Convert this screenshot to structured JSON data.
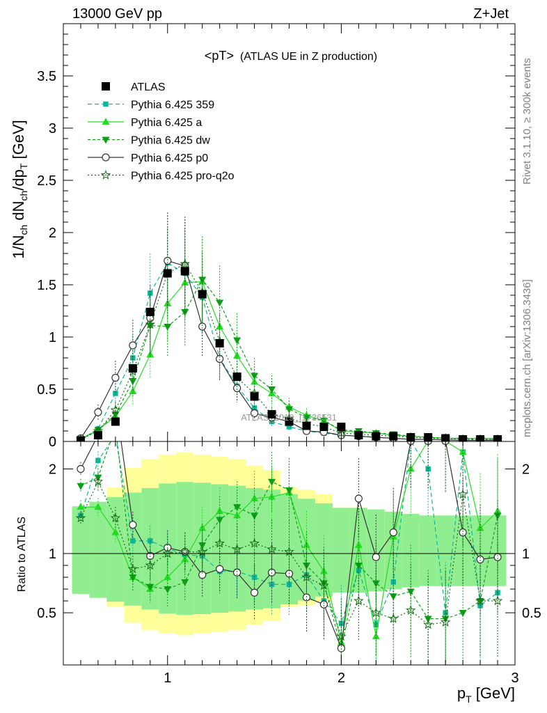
{
  "header": {
    "left": "13000 GeV pp",
    "right": "Z+Jet"
  },
  "side_labels": {
    "rivet": "Rivet 3.1.10, ≥ 300k events",
    "site": "mcplots.cern.ch [arXiv:1306.3436]"
  },
  "watermark": "ATLAS_2019_I1736531",
  "chart_data": {
    "type": "scatter",
    "title": "<pT>",
    "subtitle": "(ATLAS UE in Z production)",
    "xlabel": "p_T [GeV]",
    "ylabel": "1/N_ch dN_ch/dp_T [GeV]",
    "ratio_ylabel": "Ratio to ATLAS",
    "xlim": [
      0.4,
      3.0
    ],
    "ylim": [
      0,
      4.0
    ],
    "ratio_ylim": [
      0.34,
      2.33
    ],
    "x_ticks": [
      1,
      2,
      3
    ],
    "y_ticks": [
      0.5,
      1,
      1.5,
      2,
      2.5,
      3,
      3.5
    ],
    "ratio_ticks": [
      0.5,
      1,
      2
    ],
    "legend_position": "top-left",
    "x": [
      0.5,
      0.6,
      0.7,
      0.8,
      0.9,
      1.0,
      1.1,
      1.2,
      1.3,
      1.4,
      1.5,
      1.6,
      1.7,
      1.8,
      1.9,
      2.0,
      2.1,
      2.2,
      2.3,
      2.4,
      2.5,
      2.6,
      2.7,
      2.8,
      2.9
    ],
    "data": {
      "name": "ATLAS",
      "values": [
        0.01,
        0.06,
        0.19,
        0.7,
        1.24,
        1.61,
        1.63,
        1.41,
        0.94,
        0.62,
        0.43,
        0.26,
        0.19,
        0.15,
        0.14,
        0.14,
        0.06,
        0.05,
        0.05,
        0.04,
        0.04,
        0.03,
        0.02,
        0.02,
        0.02
      ],
      "band_inner": [
        0.62,
        0.68,
        0.74,
        0.8,
        0.86,
        0.92,
        0.94,
        0.93,
        0.91,
        0.89,
        0.86,
        0.84,
        0.78,
        0.72,
        0.66,
        0.6,
        0.6,
        0.58,
        0.55,
        0.52,
        0.5,
        0.5,
        0.5,
        0.5,
        0.5
      ],
      "band_outer": [
        0.3,
        0.4,
        0.6,
        0.78,
        0.86,
        0.9,
        0.92,
        0.9,
        0.88,
        0.86,
        0.8,
        0.76,
        0.6,
        0.58,
        0.54,
        0.42,
        0.42,
        0.4,
        0.35,
        0.35,
        0.3,
        0.3,
        0.3,
        0.3,
        0.3
      ]
    },
    "series": [
      {
        "name": "Pythia 6.425 359",
        "color": "#10b496",
        "marker": "square",
        "dash": "6,4",
        "values": [
          0.02,
          0.12,
          0.46,
          0.8,
          1.42,
          1.71,
          1.61,
          1.38,
          0.8,
          0.53,
          0.32,
          0.19,
          0.14,
          0.1,
          0.08,
          0.06,
          0.05,
          0.04,
          0.03,
          0.02,
          0.02,
          0.015,
          0.012,
          0.011,
          0.012
        ],
        "ratio": [
          1.45,
          2.1,
          2.4,
          1.15,
          1.15,
          1.06,
          0.99,
          0.98,
          0.85,
          0.85,
          0.8,
          0.74,
          0.74,
          0.82,
          0.6,
          0.41,
          0.86,
          0.4,
          0.76,
          2.33,
          2.0,
          0.5,
          2.2,
          0.56,
          0.67
        ]
      },
      {
        "name": "Pythia 6.425 a",
        "color": "#22dd22",
        "marker": "triangle-up",
        "dash": "",
        "values": [
          0.02,
          0.11,
          0.24,
          0.48,
          0.83,
          1.32,
          1.52,
          1.53,
          1.1,
          0.82,
          0.57,
          0.46,
          0.33,
          0.25,
          0.2,
          0.1,
          0.09,
          0.08,
          0.06,
          0.05,
          0.04,
          0.03,
          0.03,
          0.03,
          0.03
        ],
        "ratio": [
          1.55,
          1.55,
          1.25,
          0.8,
          0.7,
          0.8,
          0.95,
          1.3,
          1.5,
          1.45,
          1.65,
          1.67,
          1.72,
          1.1,
          0.85,
          0.25,
          1.1,
          0.3,
          1.2,
          2.0,
          2.33,
          2.33,
          2.2,
          1.3,
          1.5
        ]
      },
      {
        "name": "Pythia 6.425 dw",
        "color": "#0c9e16",
        "marker": "triangle-down",
        "dash": "4,3",
        "values": [
          0.02,
          0.11,
          0.26,
          0.58,
          1.11,
          1.1,
          1.24,
          1.55,
          1.33,
          0.97,
          0.63,
          0.5,
          0.31,
          0.23,
          0.2,
          0.11,
          0.1,
          0.08,
          0.07,
          0.05,
          0.04,
          0.03,
          0.03,
          0.02,
          0.02
        ],
        "ratio": [
          1.8,
          1.9,
          2.5,
          0.8,
          0.72,
          0.7,
          0.76,
          1.1,
          1.4,
          1.55,
          1.45,
          1.85,
          1.75,
          0.9,
          0.75,
          0.2,
          0.9,
          0.75,
          0.64,
          0.68,
          0.45,
          0.45,
          0.5,
          0.6,
          1.45
        ]
      },
      {
        "name": "Pythia 6.425 p0",
        "color": "#333333",
        "marker": "circle-open",
        "dash": "",
        "values": [
          0.03,
          0.28,
          0.61,
          0.92,
          1.18,
          1.73,
          1.68,
          1.1,
          0.79,
          0.51,
          0.27,
          0.23,
          0.19,
          0.1,
          0.09,
          0.06,
          0.05,
          0.04,
          0.03,
          0.02,
          0.02,
          0.015,
          0.01,
          0.01,
          0.01
        ],
        "ratio": [
          2.0,
          2.4,
          2.8,
          1.34,
          0.98,
          1.07,
          1.02,
          0.82,
          0.87,
          0.84,
          0.67,
          0.84,
          0.83,
          0.63,
          0.57,
          0.2,
          1.65,
          0.97,
          1.25,
          2.33,
          2.33,
          2.33,
          1.25,
          0.95,
          0.97
        ]
      },
      {
        "name": "Pythia 6.425 pro-q2o",
        "color": "#146e14",
        "marker": "star-open",
        "dash": "2,3",
        "values": [
          0.02,
          0.1,
          0.3,
          0.67,
          1.12,
          1.61,
          1.7,
          1.43,
          0.96,
          0.61,
          0.46,
          0.26,
          0.22,
          0.17,
          0.14,
          0.08,
          0.07,
          0.06,
          0.05,
          0.04,
          0.03,
          0.03,
          0.02,
          0.02,
          0.02
        ],
        "ratio": [
          1.42,
          1.85,
          1.42,
          0.87,
          0.9,
          1.0,
          1.02,
          1.02,
          1.12,
          1.05,
          1.12,
          1.05,
          1.02,
          0.8,
          0.73,
          0.3,
          0.6,
          0.5,
          0.45,
          0.52,
          0.4,
          0.42,
          1.7,
          0.6,
          0.6
        ]
      }
    ]
  }
}
